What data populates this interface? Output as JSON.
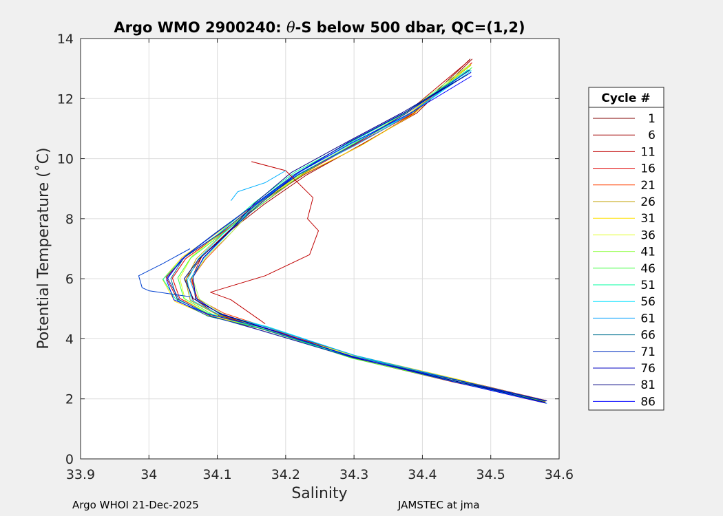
{
  "chart_data": {
    "type": "line",
    "title": "Argo WMO 2900240: θ-S below 500 dbar,  QC=(1,2)",
    "title_prefix": "Argo WMO 2900240: ",
    "title_theta": "θ",
    "title_suffix": "-S below 500 dbar,  QC=(1,2)",
    "xlabel": "Salinity",
    "ylabel": "Potential Temperature (˚C)",
    "xlim": [
      33.9,
      34.6
    ],
    "ylim": [
      0,
      14
    ],
    "xticks": [
      33.9,
      34.0,
      34.1,
      34.2,
      34.3,
      34.4,
      34.5,
      34.6
    ],
    "xtick_labels": [
      "33.9",
      "34",
      "34.1",
      "34.2",
      "34.3",
      "34.4",
      "34.5",
      "34.6"
    ],
    "yticks": [
      0,
      2,
      4,
      6,
      8,
      10,
      12,
      14
    ],
    "ytick_labels": [
      "0",
      "2",
      "4",
      "6",
      "8",
      "10",
      "12",
      "14"
    ],
    "grid": true,
    "legend": {
      "title": "Cycle #",
      "placement": "right-outside",
      "entries": [
        {
          "label": "1",
          "color": "#800000"
        },
        {
          "label": "6",
          "color": "#a00000"
        },
        {
          "label": "11",
          "color": "#c00000"
        },
        {
          "label": "16",
          "color": "#e00000"
        },
        {
          "label": "21",
          "color": "#ff4000"
        },
        {
          "label": "26",
          "color": "#c0a000"
        },
        {
          "label": "31",
          "color": "#ffe000"
        },
        {
          "label": "36",
          "color": "#e0ff20"
        },
        {
          "label": "41",
          "color": "#a0ff60"
        },
        {
          "label": "46",
          "color": "#40ff40"
        },
        {
          "label": "51",
          "color": "#00ffa0"
        },
        {
          "label": "56",
          "color": "#00e0ff"
        },
        {
          "label": "61",
          "color": "#00a0ff"
        },
        {
          "label": "66",
          "color": "#007090"
        },
        {
          "label": "71",
          "color": "#0030c0"
        },
        {
          "label": "76",
          "color": "#0000c0"
        },
        {
          "label": "81",
          "color": "#000080"
        },
        {
          "label": "86",
          "color": "#0000ff"
        }
      ]
    },
    "base_profile": [
      {
        "s": 34.58,
        "t": 1.9
      },
      {
        "s": 34.45,
        "t": 2.6
      },
      {
        "s": 34.3,
        "t": 3.4
      },
      {
        "s": 34.17,
        "t": 4.35
      },
      {
        "s": 34.1,
        "t": 4.8
      },
      {
        "s": 34.06,
        "t": 5.3
      },
      {
        "s": 34.05,
        "t": 6.0
      },
      {
        "s": 34.07,
        "t": 6.7
      },
      {
        "s": 34.11,
        "t": 7.5
      },
      {
        "s": 34.16,
        "t": 8.5
      },
      {
        "s": 34.22,
        "t": 9.5
      },
      {
        "s": 34.3,
        "t": 10.5
      },
      {
        "s": 34.38,
        "t": 11.5
      },
      {
        "s": 34.47,
        "t": 13.3
      }
    ],
    "anomalies": [
      {
        "color": "#c00000",
        "points": [
          {
            "s": 34.17,
            "t": 4.5
          },
          {
            "s": 34.12,
            "t": 5.3
          },
          {
            "s": 34.09,
            "t": 5.55
          },
          {
            "s": 34.17,
            "t": 6.1
          },
          {
            "s": 34.235,
            "t": 6.8
          },
          {
            "s": 34.248,
            "t": 7.6
          },
          {
            "s": 34.232,
            "t": 8.0
          },
          {
            "s": 34.24,
            "t": 8.7
          },
          {
            "s": 34.2,
            "t": 9.6
          },
          {
            "s": 34.15,
            "t": 9.9
          }
        ]
      },
      {
        "color": "#0040d0",
        "points": [
          {
            "s": 34.06,
            "t": 5.4
          },
          {
            "s": 34.0,
            "t": 5.6
          },
          {
            "s": 33.99,
            "t": 5.7
          },
          {
            "s": 33.985,
            "t": 6.1
          },
          {
            "s": 34.02,
            "t": 6.5
          },
          {
            "s": 34.06,
            "t": 7.0
          }
        ]
      },
      {
        "color": "#00b0ff",
        "points": [
          {
            "s": 34.12,
            "t": 8.6
          },
          {
            "s": 34.13,
            "t": 8.9
          },
          {
            "s": 34.17,
            "t": 9.2
          },
          {
            "s": 34.2,
            "t": 9.6
          }
        ]
      }
    ]
  },
  "footer": {
    "left": "Argo WHOI 21-Dec-2025",
    "right": "JAMSTEC at jma"
  }
}
